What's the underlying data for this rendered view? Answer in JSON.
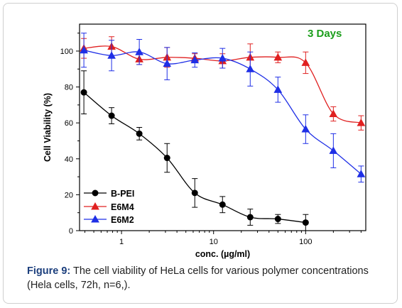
{
  "chart_data": {
    "type": "line",
    "xscale": "log",
    "xlim": [
      0.35,
      450
    ],
    "ylim": [
      0,
      115
    ],
    "xlabel": "conc. (µg/ml)",
    "ylabel": "Cell Viability (%)",
    "x_ticks": [
      1,
      10,
      100
    ],
    "y_ticks": [
      0,
      20,
      40,
      60,
      80,
      100
    ],
    "annotation": "3 Days",
    "annotation_color": "#1b9e1b",
    "series": [
      {
        "name": "B-PEI",
        "color": "#000000",
        "marker": "circle",
        "x": [
          0.39,
          0.78,
          1.56,
          3.125,
          6.25,
          12.5,
          25,
          50,
          100
        ],
        "y": [
          77,
          64,
          54,
          40.5,
          21,
          14.5,
          7.5,
          6.5,
          4.5
        ],
        "err": [
          12,
          4.5,
          3.5,
          8,
          8,
          4.5,
          4.5,
          2.5,
          4.5
        ]
      },
      {
        "name": "E6M4",
        "color": "#e02020",
        "marker": "triangle",
        "x": [
          0.39,
          0.78,
          1.56,
          3.125,
          6.25,
          12.5,
          25,
          50,
          100,
          200,
          400
        ],
        "y": [
          101.5,
          102.5,
          95.5,
          96.5,
          96,
          94.5,
          96.5,
          96.5,
          93.5,
          65,
          60
        ],
        "err": [
          5.5,
          5.5,
          3,
          5.5,
          2.5,
          4,
          7.5,
          3,
          6,
          4,
          4
        ]
      },
      {
        "name": "E6M2",
        "color": "#1f2fe6",
        "marker": "triangle",
        "x": [
          0.39,
          0.78,
          1.56,
          3.125,
          6.25,
          12.5,
          25,
          50,
          100,
          200,
          400
        ],
        "y": [
          100.5,
          97.5,
          99.5,
          93,
          95,
          96,
          90,
          78.5,
          56.5,
          44.5,
          31.5
        ],
        "err": [
          9.5,
          8.5,
          7,
          9,
          4,
          5.5,
          9.5,
          7,
          8,
          9.5,
          4.5
        ]
      }
    ]
  },
  "caption": {
    "label": "Figure 9:",
    "text": " The cell viability of HeLa cells for various polymer concentrations (Hela cells, 72h, n=6,)."
  }
}
